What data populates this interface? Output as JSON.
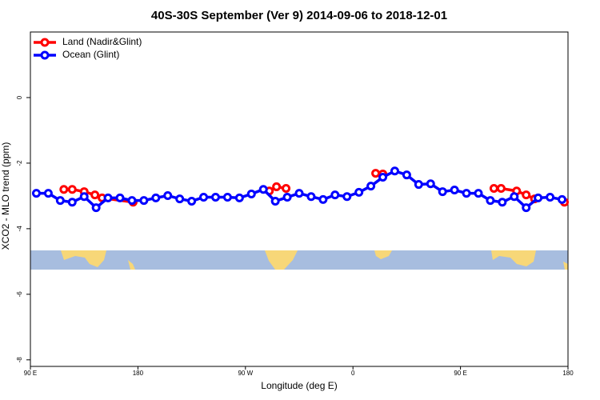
{
  "chart_data": {
    "type": "line",
    "title": "40S-30S September (Ver 9)   2014-09-06 to 2018-12-01",
    "x_label": "Longitude (deg E)",
    "y_label": "XCO2 - MLO trend (ppm)",
    "xlim": [
      90,
      540
    ],
    "xticks": [
      {
        "value": 90,
        "label": "90 E"
      },
      {
        "value": 180,
        "label": "180"
      },
      {
        "value": 270,
        "label": "90 W"
      },
      {
        "value": 360,
        "label": "0"
      },
      {
        "value": 450,
        "label": "90 E"
      },
      {
        "value": 540,
        "label": "180"
      }
    ],
    "ylim": [
      -8.2,
      2.0
    ],
    "yticks": [
      0,
      -2,
      -4,
      -6,
      -8
    ],
    "legend": "top-left",
    "series": [
      {
        "name": "Land (Nadir&Glint)",
        "color": "#ff0000",
        "x": [
          118,
          125,
          135,
          144,
          150,
          176,
          null,
          290,
          296,
          304,
          null,
          379,
          385,
          null,
          478,
          484,
          497,
          505,
          512,
          null,
          537
        ],
        "values": [
          -2.8,
          -2.8,
          -2.87,
          -2.97,
          -3.06,
          -3.19,
          null,
          -2.85,
          -2.72,
          -2.77,
          null,
          -2.31,
          -2.33,
          null,
          -2.77,
          -2.77,
          -2.85,
          -2.97,
          -3.09,
          null,
          -3.19
        ]
      },
      {
        "name": "Ocean (Glint)",
        "color": "#0000ff",
        "x": [
          95,
          105,
          115,
          125,
          135,
          145,
          155,
          165,
          175,
          185,
          195,
          205,
          215,
          225,
          235,
          245,
          255,
          265,
          275,
          285,
          295,
          305,
          315,
          325,
          335,
          345,
          355,
          365,
          375,
          385,
          395,
          405,
          415,
          425,
          435,
          445,
          455,
          465,
          475,
          485,
          495,
          505,
          515,
          525,
          535
        ],
        "values": [
          -2.92,
          -2.92,
          -3.14,
          -3.19,
          -3.02,
          -3.36,
          -3.06,
          -3.06,
          -3.14,
          -3.14,
          -3.06,
          -2.99,
          -3.09,
          -3.16,
          -3.04,
          -3.04,
          -3.04,
          -3.06,
          -2.94,
          -2.8,
          -3.16,
          -3.04,
          -2.92,
          -3.02,
          -3.11,
          -2.97,
          -3.02,
          -2.89,
          -2.7,
          -2.43,
          -2.24,
          -2.36,
          -2.65,
          -2.63,
          -2.87,
          -2.82,
          -2.92,
          -2.92,
          -3.14,
          -3.19,
          -3.02,
          -3.36,
          -3.06,
          -3.04,
          -3.11
        ]
      }
    ]
  }
}
